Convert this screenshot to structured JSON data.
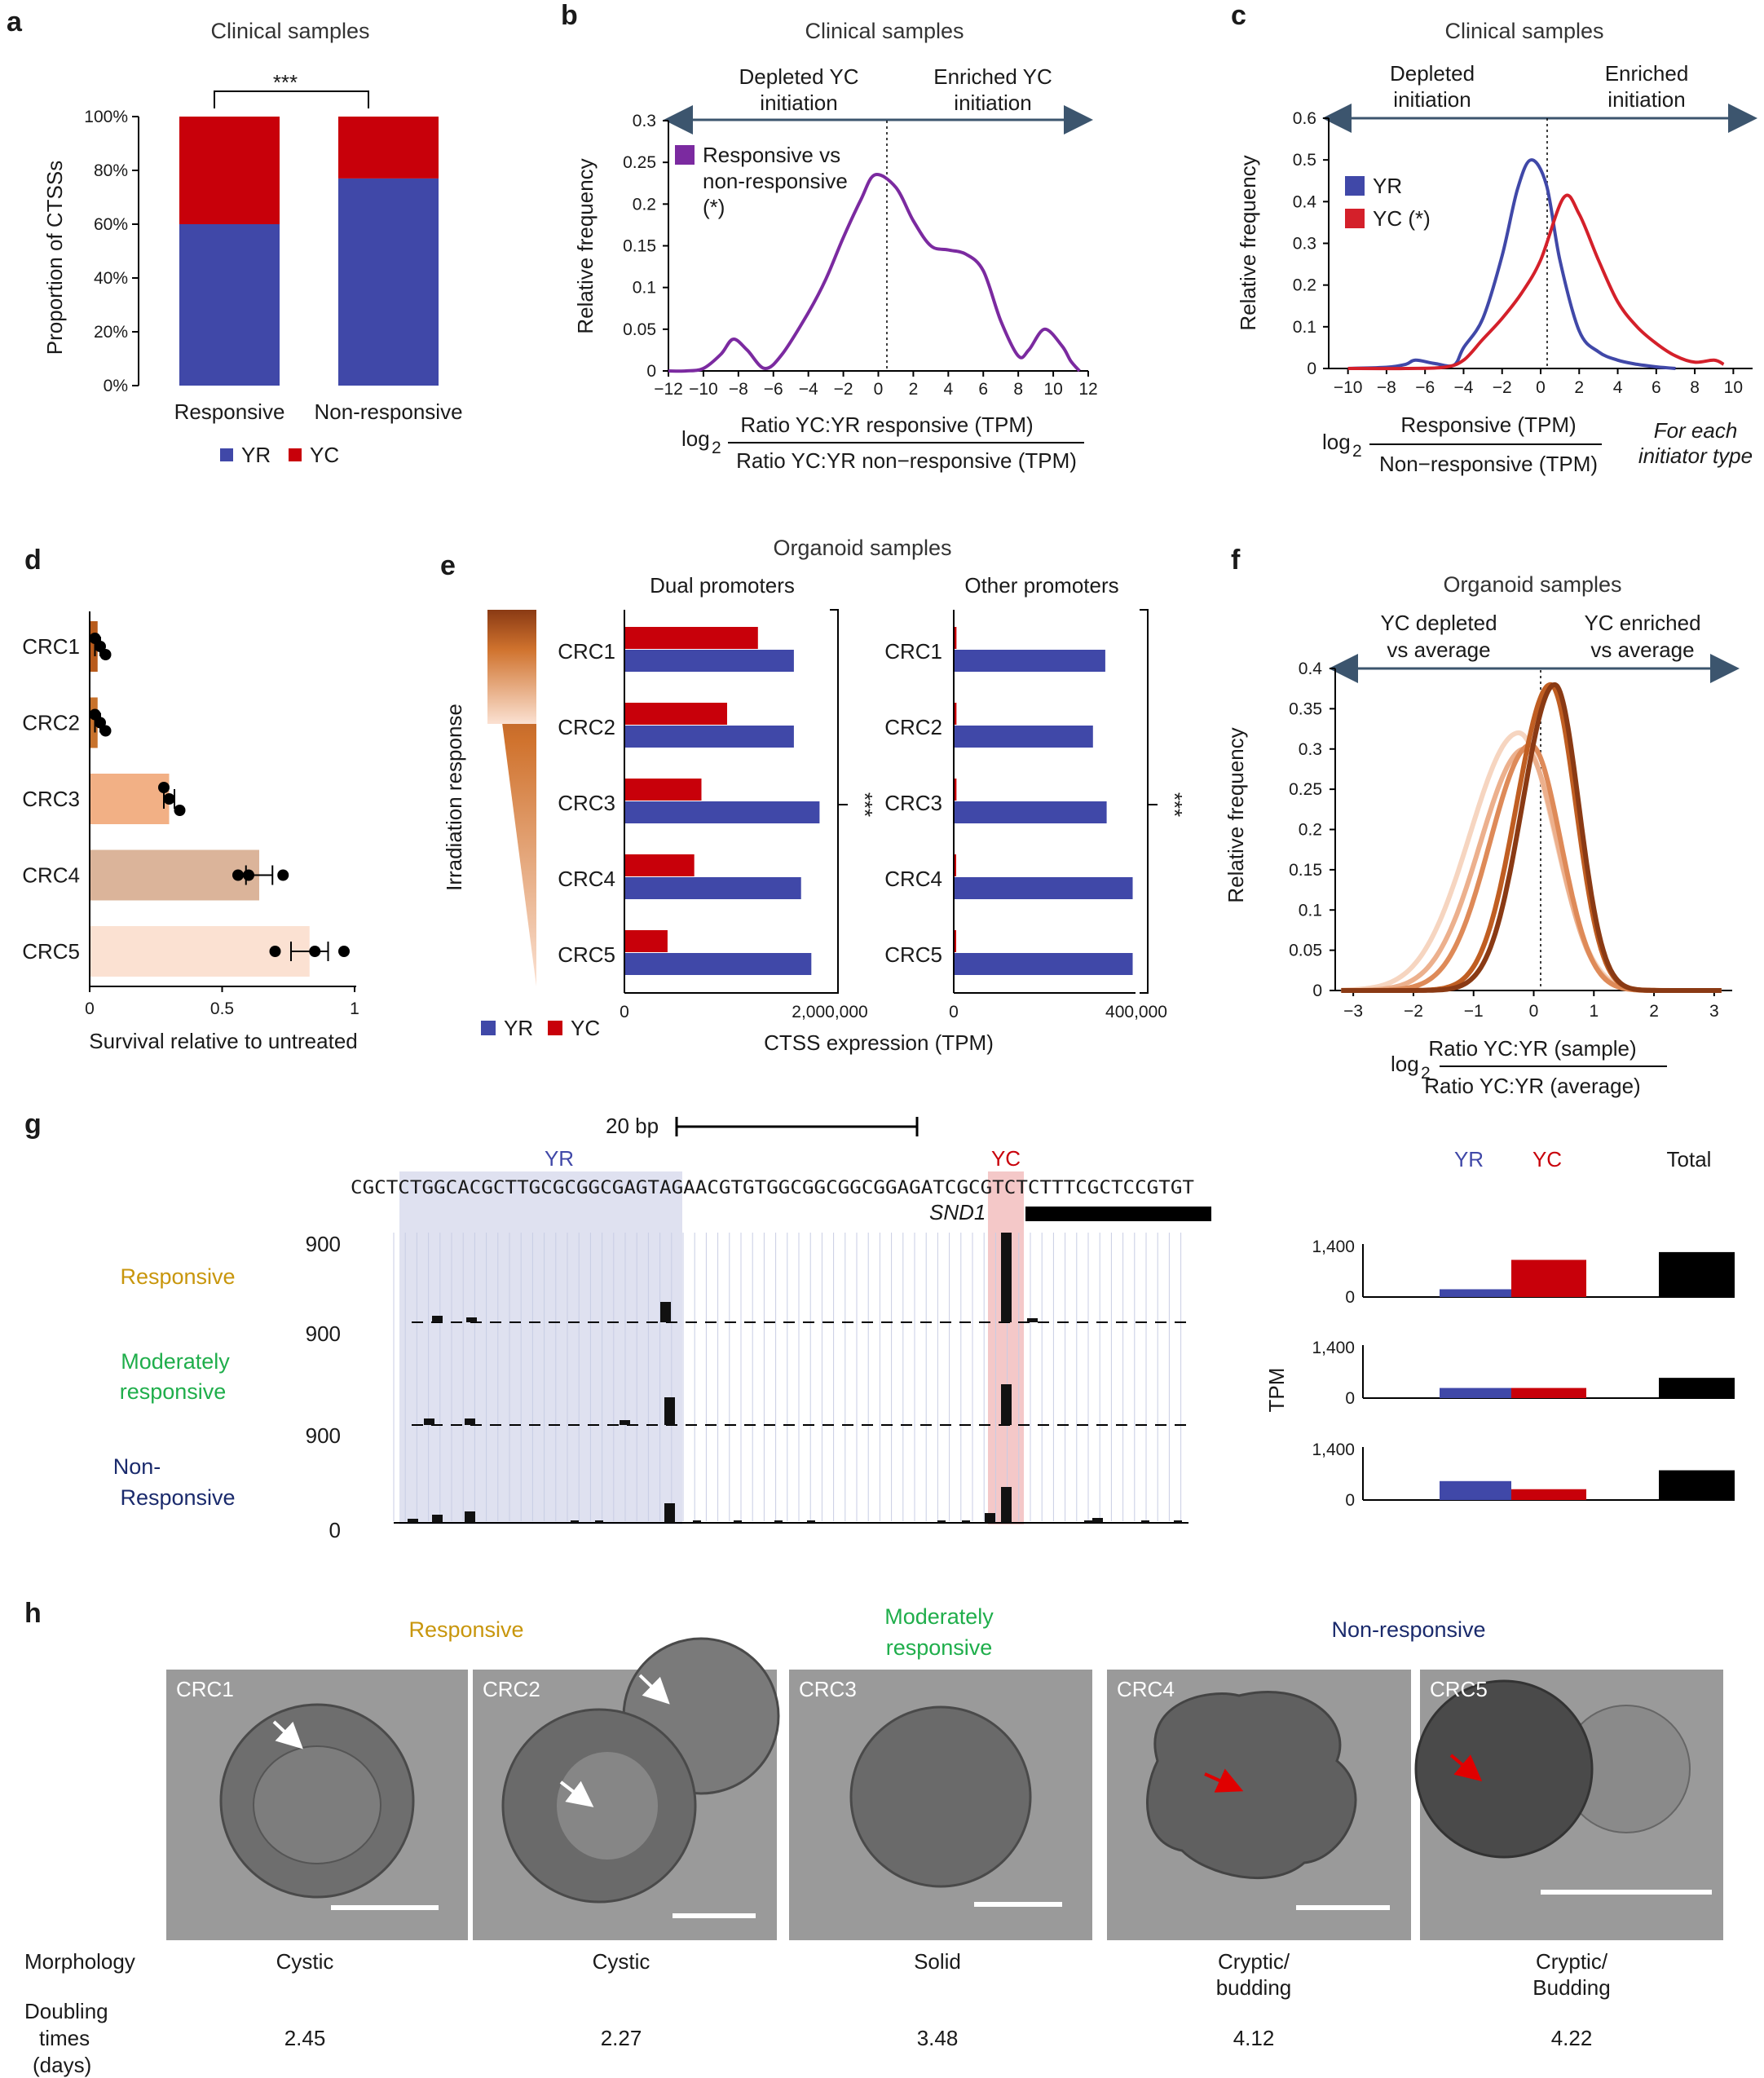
{
  "colors": {
    "yr": "#4048a8",
    "yc": "#c8000a",
    "purple": "#7b2aa0",
    "axis": "#3c556e"
  },
  "a": {
    "letter": "a",
    "title": "Clinical samples",
    "ylabel": "Proportion of CTSSs",
    "yticks": [
      "0%",
      "20%",
      "40%",
      "60%",
      "80%",
      "100%"
    ],
    "sig": "***",
    "legend_yr": "YR",
    "legend_yc": "YC"
  },
  "b": {
    "letter": "b",
    "title": "Clinical samples",
    "left_arrow": [
      "Depleted YC",
      "initiation"
    ],
    "right_arrow": [
      "Enriched YC",
      "initiation"
    ],
    "legend": [
      "Responsive vs",
      "non-responsive",
      "(*)"
    ],
    "ylabel": "Relative frequency",
    "yticks": [
      "0",
      "0.05",
      "0.1",
      "0.15",
      "0.2",
      "0.25",
      "0.3"
    ],
    "xticks": [
      "−12",
      "−10",
      "−8",
      "−6",
      "−4",
      "−2",
      "0",
      "2",
      "4",
      "6",
      "8",
      "10",
      "12"
    ],
    "xlabel_log": "log",
    "xlabel_sub": "2",
    "xlabel_num": "Ratio YC:YR responsive (TPM)",
    "xlabel_den": "Ratio YC:YR non−responsive (TPM)"
  },
  "c": {
    "letter": "c",
    "title": "Clinical samples",
    "left_arrow": [
      "Depleted",
      "initiation"
    ],
    "right_arrow": [
      "Enriched",
      "initiation"
    ],
    "legend_yr": "YR",
    "legend_yc": "YC (*)",
    "ylabel": "Relative frequency",
    "yticks": [
      "0",
      "0.1",
      "0.2",
      "0.3",
      "0.4",
      "0.5",
      "0.6"
    ],
    "xticks": [
      "−10",
      "−8",
      "−6",
      "−4",
      "−2",
      "0",
      "2",
      "4",
      "6",
      "8",
      "10"
    ],
    "xlabel_log": "log",
    "xlabel_sub": "2",
    "xlabel_num": "Responsive (TPM)",
    "xlabel_den": "Non−responsive (TPM)",
    "note": [
      "For each",
      "initiator type"
    ]
  },
  "d": {
    "letter": "d",
    "xticks": [
      "0",
      "0.5",
      "1"
    ],
    "xlabel": "Survival relative to untreated"
  },
  "e": {
    "letter": "e",
    "title": "Organoid samples",
    "sub_dual": "Dual promoters",
    "sub_other": "Other promoters",
    "gradient_label": "Irradiation response",
    "sig_dual": "***",
    "sig_other": "***",
    "xticks_dual": [
      "0",
      "2,000,000"
    ],
    "xticks_other": [
      "0",
      "400,000"
    ],
    "xlabel": "CTSS expression (TPM)",
    "legend_yr": "YR",
    "legend_yc": "YC"
  },
  "f": {
    "letter": "f",
    "title": "Organoid samples",
    "left_arrow": [
      "YC depleted",
      "vs average"
    ],
    "right_arrow": [
      "YC enriched",
      "vs average"
    ],
    "ylabel": "Relative frequency",
    "yticks": [
      "0",
      "0.05",
      "0.1",
      "0.15",
      "0.2",
      "0.25",
      "0.3",
      "0.35",
      "0.4"
    ],
    "xticks": [
      "−3",
      "−2",
      "−1",
      "0",
      "1",
      "2",
      "3"
    ],
    "xlabel_log": "log",
    "xlabel_sub": "2",
    "xlabel_num": "Ratio YC:YR (sample)",
    "xlabel_den": "Ratio YC:YR (average)"
  },
  "g": {
    "letter": "g",
    "scale": "20 bp",
    "yr_label": "YR",
    "yc_label": "YC",
    "sequence": "CGCTCTGGCACGCTTGCGCGGCGAGTAGAACGTGTGGCGGCGGCGGAGATCGCGTCTCTTTCGCTCCGTGT",
    "gene": "SND1",
    "track_max": [
      "900",
      "900",
      "900"
    ],
    "track_zero": "0",
    "groups": [
      "Responsive",
      [
        "Moderately",
        "responsive"
      ],
      [
        "Non-",
        "Responsive"
      ]
    ],
    "group_colors": [
      "#c8960c",
      "#1fae4b",
      "#1a2a6c"
    ],
    "bar_header": [
      "YR",
      "YC",
      "Total"
    ],
    "tpm_max": "1,400",
    "tpm_zero": "0",
    "tpm_label": "TPM"
  },
  "h": {
    "letter": "h",
    "groups": [
      "Responsive",
      [
        "Moderately",
        "responsive"
      ],
      "Non-responsive"
    ],
    "row_morph": "Morphology",
    "row_doubling": [
      "Doubling",
      "times",
      "(days)"
    ]
  },
  "chart_data": [
    {
      "panel": "a",
      "type": "bar",
      "stacked": true,
      "title": "Clinical samples",
      "categories": [
        "Responsive",
        "Non-responsive"
      ],
      "series": [
        {
          "name": "YR",
          "values": [
            60,
            77
          ]
        },
        {
          "name": "YC",
          "values": [
            40,
            23
          ]
        }
      ],
      "ylabel": "Proportion of CTSSs",
      "ylim": [
        0,
        100
      ]
    },
    {
      "panel": "b",
      "type": "line",
      "title": "Clinical samples",
      "series": [
        {
          "name": "Responsive vs non-responsive (*)",
          "x": [
            -12,
            -11,
            -10,
            -9,
            -8.3,
            -7.5,
            -6.5,
            -5.5,
            -4,
            -3,
            -2,
            -1,
            -0.2,
            1,
            2,
            3,
            4,
            5,
            6,
            7,
            8,
            8.6,
            9.5,
            10.5,
            11,
            11.5
          ],
          "y": [
            0,
            0,
            0.003,
            0.02,
            0.038,
            0.025,
            0.003,
            0.02,
            0.07,
            0.11,
            0.16,
            0.205,
            0.235,
            0.22,
            0.18,
            0.15,
            0.145,
            0.14,
            0.12,
            0.06,
            0.018,
            0.025,
            0.05,
            0.03,
            0.012,
            0
          ]
        }
      ],
      "xlim": [
        -12,
        12
      ],
      "ylim": [
        0,
        0.3
      ],
      "ylabel": "Relative frequency"
    },
    {
      "panel": "c",
      "type": "line",
      "title": "Clinical samples",
      "series": [
        {
          "name": "YR",
          "x": [
            -10,
            -8,
            -7,
            -6.5,
            -5.5,
            -4.5,
            -4,
            -3,
            -2,
            -1.2,
            -0.5,
            0.3,
            1,
            2,
            3,
            4,
            5,
            6,
            7
          ],
          "y": [
            0,
            0.003,
            0.01,
            0.02,
            0.012,
            0.008,
            0.05,
            0.12,
            0.27,
            0.43,
            0.5,
            0.44,
            0.26,
            0.09,
            0.04,
            0.02,
            0.01,
            0.004,
            0
          ]
        },
        {
          "name": "YC (*)",
          "x": [
            -10,
            -7,
            -5,
            -4,
            -3,
            -2,
            -1,
            0,
            1.2,
            2,
            3,
            4,
            5,
            6,
            7,
            8,
            9,
            9.5
          ],
          "y": [
            0,
            0,
            0.003,
            0.02,
            0.07,
            0.12,
            0.18,
            0.26,
            0.41,
            0.37,
            0.26,
            0.16,
            0.1,
            0.06,
            0.03,
            0.015,
            0.02,
            0.01
          ]
        }
      ],
      "xlim": [
        -11,
        11
      ],
      "ylim": [
        0,
        0.6
      ],
      "ylabel": "Relative frequency"
    },
    {
      "panel": "d",
      "type": "bar",
      "orientation": "horizontal",
      "categories": [
        "CRC1",
        "CRC2",
        "CRC3",
        "CRC4",
        "CRC5"
      ],
      "values": [
        0.03,
        0.03,
        0.3,
        0.64,
        0.83
      ],
      "points": [
        [
          0.02,
          0.04,
          0.06
        ],
        [
          0.02,
          0.04,
          0.06
        ],
        [
          0.28,
          0.3,
          0.34
        ],
        [
          0.56,
          0.6,
          0.73
        ],
        [
          0.7,
          0.85,
          0.96
        ]
      ],
      "errors": [
        0.01,
        0.01,
        0.02,
        0.05,
        0.07
      ],
      "bar_colors": [
        "#b85b1c",
        "#c8722c",
        "#f2b085",
        "#dbb49a",
        "#fbe1d2"
      ],
      "xlabel": "Survival relative to untreated",
      "xlim": [
        0,
        1
      ]
    },
    {
      "panel": "e-dual",
      "type": "bar",
      "orientation": "horizontal",
      "title": "Dual promoters",
      "categories": [
        "CRC1",
        "CRC2",
        "CRC3",
        "CRC4",
        "CRC5"
      ],
      "series": [
        {
          "name": "YC",
          "values": [
            1300000,
            1000000,
            750000,
            680000,
            420000
          ]
        },
        {
          "name": "YR",
          "values": [
            1650000,
            1650000,
            1900000,
            1720000,
            1820000
          ]
        }
      ],
      "xlim": [
        0,
        2000000
      ],
      "xlabel": "CTSS expression (TPM)"
    },
    {
      "panel": "e-other",
      "type": "bar",
      "orientation": "horizontal",
      "title": "Other promoters",
      "categories": [
        "CRC1",
        "CRC2",
        "CRC3",
        "CRC4",
        "CRC5"
      ],
      "series": [
        {
          "name": "YC",
          "values": [
            6000,
            6000,
            6000,
            5000,
            5000
          ]
        },
        {
          "name": "YR",
          "values": [
            332000,
            305000,
            335000,
            392000,
            392000
          ]
        }
      ],
      "xlim": [
        0,
        400000
      ],
      "xlabel": "CTSS expression (TPM)"
    },
    {
      "panel": "f",
      "type": "line",
      "title": "Organoid samples",
      "series": [
        {
          "name": "CRC1",
          "color": "#8a3a14",
          "mu": 0.35,
          "sigma": 0.4,
          "peak": 0.38
        },
        {
          "name": "CRC2",
          "color": "#c05e22",
          "mu": 0.28,
          "sigma": 0.42,
          "peak": 0.38
        },
        {
          "name": "CRC3",
          "color": "#de8a58",
          "mu": -0.05,
          "sigma": 0.5,
          "peak": 0.305
        },
        {
          "name": "CRC4",
          "color": "#ecb08d",
          "mu": -0.15,
          "sigma": 0.55,
          "peak": 0.3
        },
        {
          "name": "CRC5",
          "color": "#f6d5c0",
          "mu": -0.25,
          "sigma": 0.6,
          "peak": 0.32
        }
      ],
      "xlim": [
        -3,
        3
      ],
      "ylim": [
        0,
        0.4
      ],
      "ylabel": "Relative frequency"
    },
    {
      "panel": "g",
      "type": "bar",
      "title": "TPM",
      "categories": [
        "Responsive",
        "Moderately responsive",
        "Non-Responsive"
      ],
      "series": [
        {
          "name": "YR",
          "values": [
            230,
            300,
            560
          ]
        },
        {
          "name": "YC",
          "values": [
            1100,
            300,
            320
          ]
        },
        {
          "name": "Total",
          "values": [
            1330,
            600,
            880
          ]
        }
      ],
      "ylim": [
        0,
        1400
      ]
    }
  ],
  "organoids": [
    {
      "name": "CRC1",
      "morphology": "Cystic",
      "doubling": "2.45"
    },
    {
      "name": "CRC2",
      "morphology": "Cystic",
      "doubling": "2.27"
    },
    {
      "name": "CRC3",
      "morphology": "Solid",
      "doubling": "3.48"
    },
    {
      "name": "CRC4",
      "morphology": "Cryptic/ budding",
      "doubling": "4.12"
    },
    {
      "name": "CRC5",
      "morphology": "Cryptic/ Budding",
      "doubling": "4.22"
    }
  ]
}
